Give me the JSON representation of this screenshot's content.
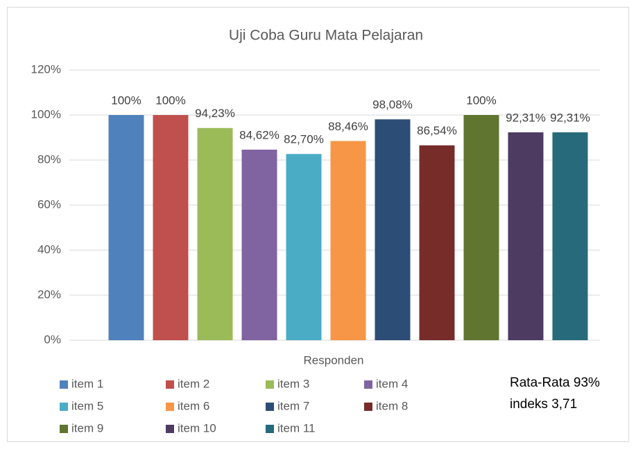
{
  "chart_data": {
    "type": "bar",
    "title": "Uji Coba Guru Mata Pelajaran",
    "categories": [
      "Responden"
    ],
    "series": [
      {
        "name": "item 1",
        "color": "#4f81bd",
        "values": [
          100
        ],
        "value_labels": [
          "100%"
        ]
      },
      {
        "name": "item 2",
        "color": "#c0504d",
        "values": [
          100
        ],
        "value_labels": [
          "100%"
        ]
      },
      {
        "name": "item 3",
        "color": "#9bbb59",
        "values": [
          94.23
        ],
        "value_labels": [
          "94,23%"
        ]
      },
      {
        "name": "item 4",
        "color": "#8064a2",
        "values": [
          84.62
        ],
        "value_labels": [
          "84,62%"
        ]
      },
      {
        "name": "item 5",
        "color": "#4bacc6",
        "values": [
          82.7
        ],
        "value_labels": [
          "82,70%"
        ]
      },
      {
        "name": "item 6",
        "color": "#f79646",
        "values": [
          88.46
        ],
        "value_labels": [
          "88,46%"
        ]
      },
      {
        "name": "item 7",
        "color": "#2c4d75",
        "values": [
          98.08
        ],
        "value_labels": [
          "98,08%"
        ]
      },
      {
        "name": "item 8",
        "color": "#772c2a",
        "values": [
          86.54
        ],
        "value_labels": [
          "86,54%"
        ]
      },
      {
        "name": "item 9",
        "color": "#5f7530",
        "values": [
          100
        ],
        "value_labels": [
          "100%"
        ]
      },
      {
        "name": "item 10",
        "color": "#4d3b62",
        "values": [
          92.31
        ],
        "value_labels": [
          "92,31%"
        ]
      },
      {
        "name": "item 11",
        "color": "#276a7c",
        "values": [
          92.31
        ],
        "value_labels": [
          "92,31%"
        ]
      }
    ],
    "ylim": [
      0,
      120
    ],
    "yticks": [
      {
        "value": 0,
        "label": "0%"
      },
      {
        "value": 20,
        "label": "20%"
      },
      {
        "value": 40,
        "label": "40%"
      },
      {
        "value": 60,
        "label": "60%"
      },
      {
        "value": 80,
        "label": "80%"
      },
      {
        "value": 100,
        "label": "100%"
      },
      {
        "value": 120,
        "label": "120%"
      }
    ],
    "grid": true,
    "legend": "bottom",
    "annotations": [
      "Rata-Rata 93%",
      "indeks 3,71"
    ]
  }
}
